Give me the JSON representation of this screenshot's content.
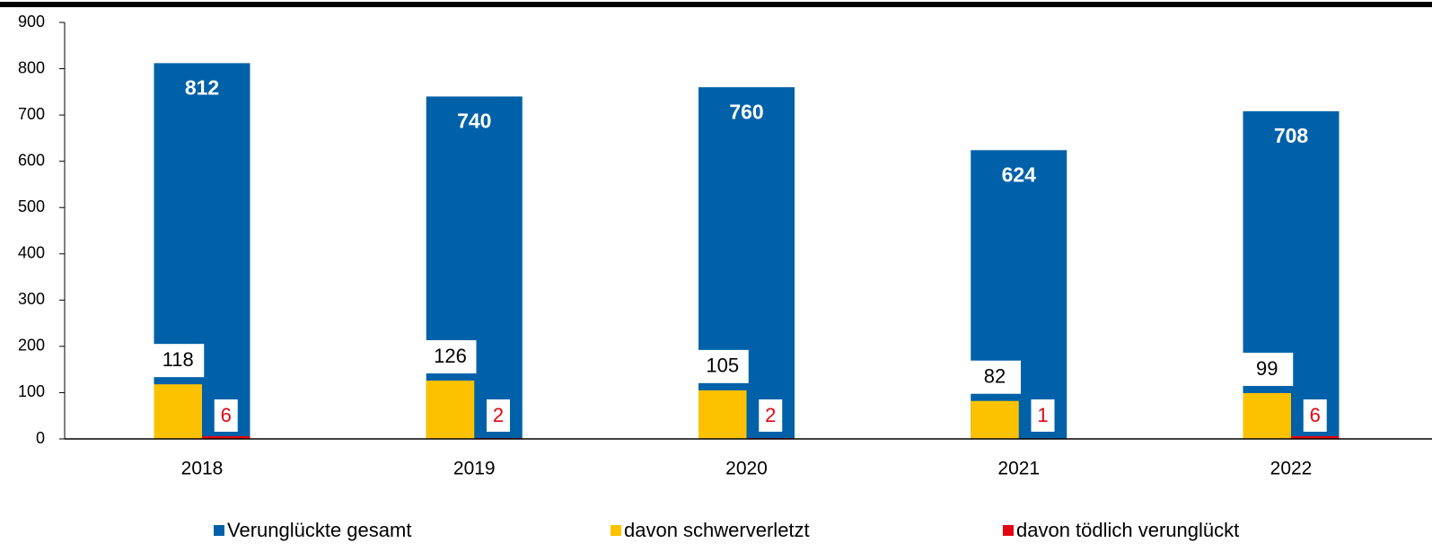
{
  "chart_data": {
    "type": "bar",
    "categories": [
      "2018",
      "2019",
      "2020",
      "2021",
      "2022"
    ],
    "series": [
      {
        "name": "Verunglückte gesamt",
        "color": "#0061a8",
        "values": [
          812,
          740,
          760,
          624,
          708
        ]
      },
      {
        "name": "davon schwerverletzt",
        "color": "#fcc200",
        "values": [
          118,
          126,
          105,
          82,
          99
        ]
      },
      {
        "name": "davon tödlich verunglückt",
        "color": "#e30613",
        "values": [
          6,
          2,
          2,
          1,
          6
        ]
      }
    ],
    "ylim": [
      0,
      900
    ],
    "yticks": [
      0,
      100,
      200,
      300,
      400,
      500,
      600,
      700,
      800,
      900
    ],
    "grid": false,
    "legend": "bottom"
  }
}
